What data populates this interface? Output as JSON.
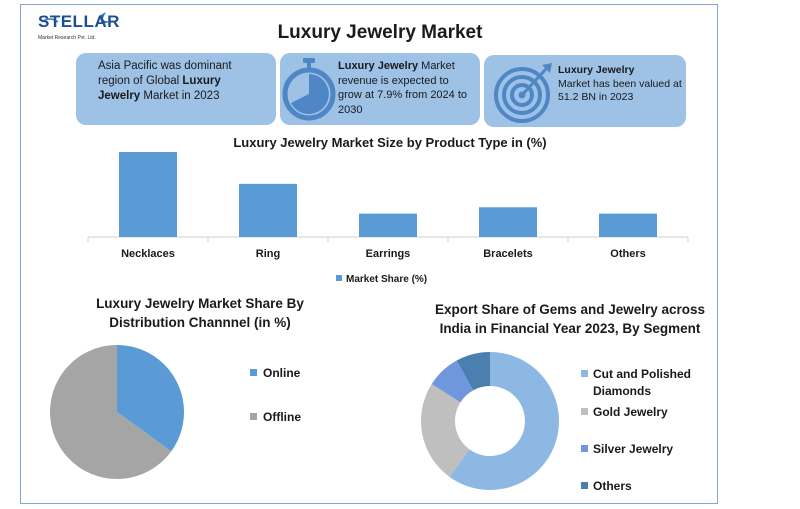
{
  "logo": {
    "word": "STELLAR",
    "sub": "Market Research Pvt. Ltd."
  },
  "title": "Luxury Jewelry Market",
  "info_boxes": {
    "box1": {
      "pre": "Asia Pacific was dominant region of Global ",
      "bold": "Luxury Jewelry",
      "post": " Market in 2023"
    },
    "box2": {
      "bold": "Luxury Jewelry",
      "post": " Market revenue is expected to grow at 7.9% from 2024 to 2030"
    },
    "box3": {
      "bold": "Luxury Jewelry",
      "post": " Market has been valued at 51.2 BN in 2023"
    }
  },
  "colors": {
    "accent": "#5b9bd5",
    "box": "#9ec1e6",
    "icon": "#4f86c6",
    "gray": "#a5a5a5"
  },
  "icons": {
    "stopwatch": "stopwatch-icon",
    "target": "target-icon"
  },
  "chart_data": [
    {
      "type": "bar",
      "title": "Luxury Jewelry Market Size by Product Type in (%)",
      "categories": [
        "Necklaces",
        "Ring",
        "Earrings",
        "Bracelets",
        "Others"
      ],
      "series": [
        {
          "name": "Market Share (%)",
          "values": [
            40,
            25,
            11,
            14,
            11
          ]
        }
      ],
      "ylim": [
        0,
        40
      ],
      "grid": false,
      "legend": "bottom"
    },
    {
      "type": "pie",
      "title": "Luxury Jewelry Market Share By Distribution Channnel (in %)",
      "labels": [
        "Online",
        "Offline"
      ],
      "values": [
        35,
        65
      ],
      "colors": [
        "#5b9bd5",
        "#a5a5a5"
      ],
      "legend": "right"
    },
    {
      "type": "pie",
      "donut": true,
      "title": "Export Share of Gems and Jewelry across India in Financial Year 2023, By Segment",
      "labels": [
        "Cut and Polished Diamonds",
        "Gold Jewelry",
        "Silver Jewelry",
        "Others"
      ],
      "values": [
        60,
        24,
        8,
        8
      ],
      "colors": [
        "#8db8e4",
        "#bfbfbf",
        "#6f97db",
        "#4a7fb0"
      ],
      "legend": "right"
    }
  ]
}
